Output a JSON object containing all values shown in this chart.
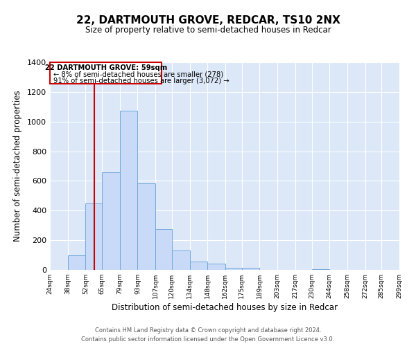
{
  "title": "22, DARTMOUTH GROVE, REDCAR, TS10 2NX",
  "subtitle": "Size of property relative to semi-detached houses in Redcar",
  "xlabel": "Distribution of semi-detached houses by size in Redcar",
  "ylabel": "Number of semi-detached properties",
  "bar_edges": [
    24,
    38,
    52,
    65,
    79,
    93,
    107,
    120,
    134,
    148,
    162,
    175,
    189,
    203,
    217,
    230,
    244,
    258,
    272,
    285,
    299
  ],
  "bar_heights": [
    0,
    100,
    450,
    660,
    1075,
    585,
    275,
    130,
    55,
    40,
    15,
    15,
    0,
    0,
    0,
    5,
    0,
    0,
    0,
    0
  ],
  "bar_color": "#c9daf8",
  "bar_edge_color": "#6fa8dc",
  "property_line_x": 59,
  "property_line_color": "#cc0000",
  "annotation_box_color": "#cc0000",
  "annotation_text_line1": "22 DARTMOUTH GROVE: 59sqm",
  "annotation_text_line2": "← 8% of semi-detached houses are smaller (278)",
  "annotation_text_line3": "91% of semi-detached houses are larger (3,072) →",
  "ylim": [
    0,
    1400
  ],
  "yticks": [
    0,
    200,
    400,
    600,
    800,
    1000,
    1200,
    1400
  ],
  "xlim": [
    24,
    299
  ],
  "tick_labels": [
    "24sqm",
    "38sqm",
    "52sqm",
    "65sqm",
    "79sqm",
    "93sqm",
    "107sqm",
    "120sqm",
    "134sqm",
    "148sqm",
    "162sqm",
    "175sqm",
    "189sqm",
    "203sqm",
    "217sqm",
    "230sqm",
    "244sqm",
    "258sqm",
    "272sqm",
    "285sqm",
    "299sqm"
  ],
  "footer_line1": "Contains HM Land Registry data © Crown copyright and database right 2024.",
  "footer_line2": "Contains public sector information licensed under the Open Government Licence v3.0.",
  "background_color": "#ffffff",
  "plot_bg_color": "#dce8f8"
}
